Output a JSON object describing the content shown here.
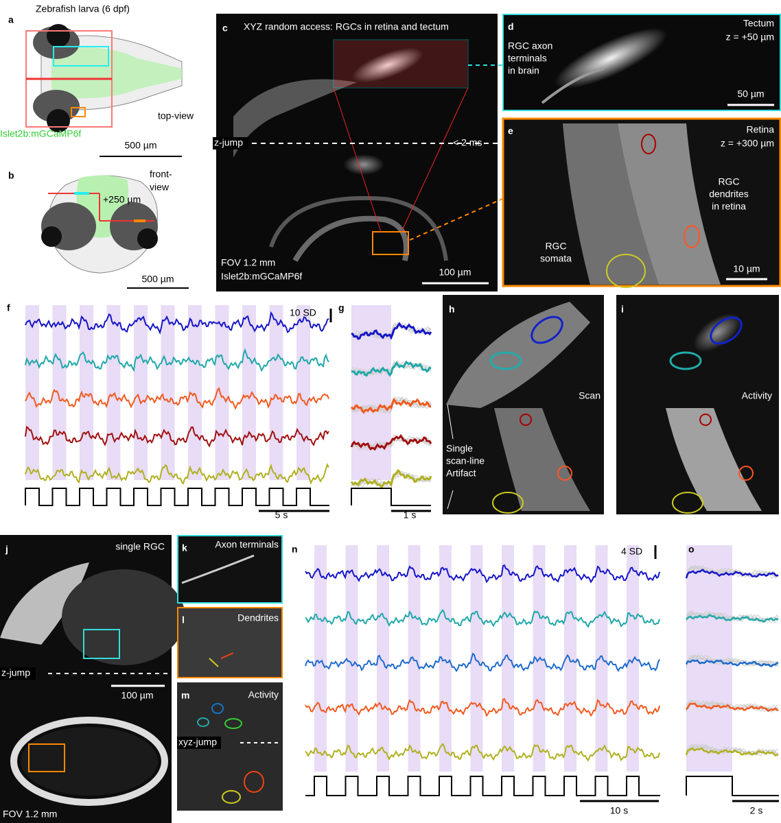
{
  "a": {
    "label": "a",
    "title": "Zebrafish larva (6 dpf)",
    "line": "Islet2b:mGCaMP6f",
    "view": "top-view",
    "scale": "500 µm"
  },
  "b": {
    "label": "b",
    "view": [
      "front-",
      "view"
    ],
    "depth": "+250 µm",
    "scale": "500 µm"
  },
  "c": {
    "label": "c",
    "title": "XYZ random access: RGCs in retina and tectum",
    "jump": "z-jump",
    "time": "< 2 ms",
    "fov": "FOV 1.2 mm",
    "line": "Islet2b:mGCaMP6f",
    "scale": "100 µm"
  },
  "d": {
    "label": "d",
    "region": "Tectum",
    "depth": "z = +50 µm",
    "note": [
      "RGC axon",
      "terminals",
      "in brain"
    ],
    "scale": "50 µm"
  },
  "e": {
    "label": "e",
    "region": "Retina",
    "depth": "z = +300 µm",
    "note": [
      "RGC",
      "dendrites",
      "in retina"
    ],
    "somata": [
      "RGC",
      "somata"
    ],
    "scale": "10 µm"
  },
  "f": {
    "label": "f",
    "scale_y": "10 SD",
    "scale_x": "5 s"
  },
  "g": {
    "label": "g",
    "scale_x": "1 s"
  },
  "h": {
    "label": "h",
    "mode": "Scan",
    "note": [
      "Single",
      "scan-line",
      "Artifact"
    ]
  },
  "i": {
    "label": "i",
    "mode": "Activity"
  },
  "j": {
    "label": "j",
    "title": "single RGC",
    "jump": "z-jump",
    "scale": "100 µm",
    "fov": "FOV 1.2 mm"
  },
  "k": {
    "label": "k",
    "title": "Axon terminals"
  },
  "l": {
    "label": "l",
    "title": "Dendrites"
  },
  "m": {
    "label": "m",
    "title": "Activity",
    "jump": "xyz-jump"
  },
  "n": {
    "label": "n",
    "scale_y": "4 SD",
    "scale_x": "10 s"
  },
  "o": {
    "label": "o",
    "scale_x": "2 s"
  }
}
